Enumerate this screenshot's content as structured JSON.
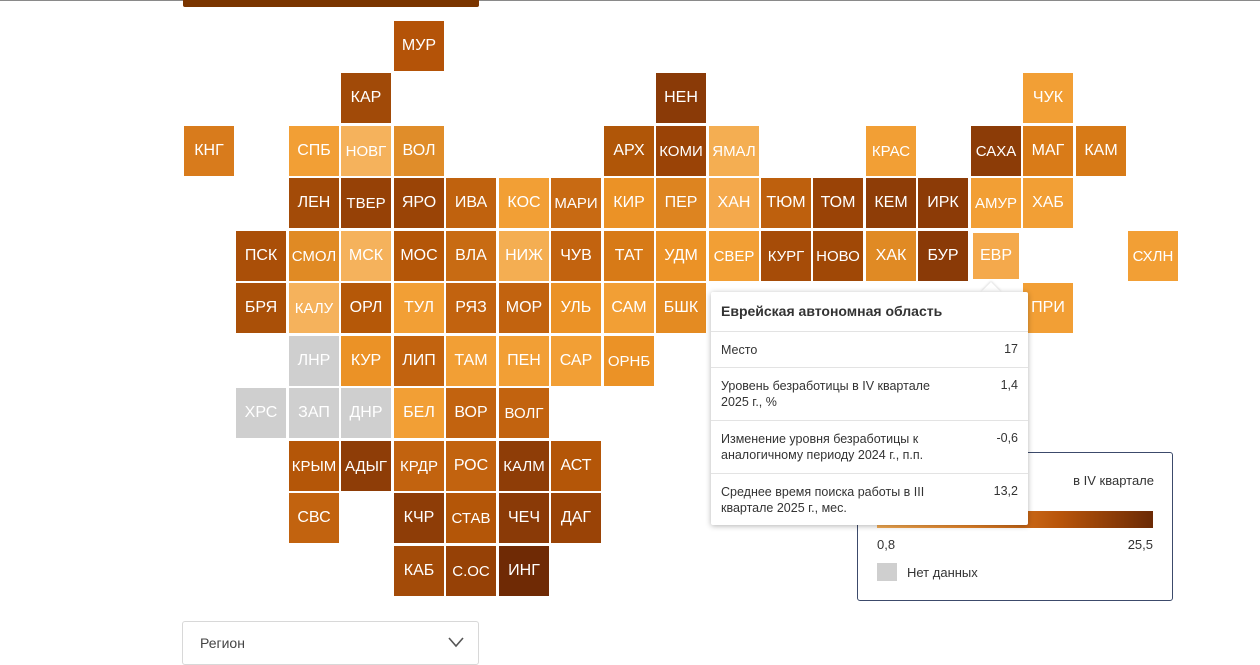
{
  "colors": {
    "na": "#cfcfcf",
    "selected": "#f4a94c"
  },
  "map": {
    "tiles": [
      {
        "code": "МУР",
        "row": 0,
        "col": 4,
        "color": "#b45308"
      },
      {
        "code": "КАР",
        "row": 1,
        "col": 3,
        "color": "#a14a08"
      },
      {
        "code": "НЕН",
        "row": 1,
        "col": 9,
        "color": "#8a3a07"
      },
      {
        "code": "ЧУК",
        "row": 1,
        "col": 16,
        "color": "#f29f35"
      },
      {
        "code": "КНГ",
        "row": 2,
        "col": 0,
        "color": "#d87b1c"
      },
      {
        "code": "СПБ",
        "row": 2,
        "col": 2,
        "color": "#f29f35"
      },
      {
        "code": "НОВГ",
        "row": 2,
        "col": 3,
        "color": "#f5b25c"
      },
      {
        "code": "ВОЛ",
        "row": 2,
        "col": 4,
        "color": "#e08d2a"
      },
      {
        "code": "АРХ",
        "row": 2,
        "col": 8,
        "color": "#b05608"
      },
      {
        "code": "КОМИ",
        "row": 2,
        "col": 9,
        "color": "#9a4306"
      },
      {
        "code": "ЯМАЛ",
        "row": 2,
        "col": 10,
        "color": "#f4ae52"
      },
      {
        "code": "КРАС",
        "row": 2,
        "col": 13,
        "color": "#f29f35"
      },
      {
        "code": "САХА",
        "row": 2,
        "col": 15,
        "color": "#8c3c07"
      },
      {
        "code": "МАГ",
        "row": 2,
        "col": 16,
        "color": "#d97b18"
      },
      {
        "code": "КАМ",
        "row": 2,
        "col": 17,
        "color": "#d77a17"
      },
      {
        "code": "ЛЕН",
        "row": 3,
        "col": 2,
        "color": "#a34b08"
      },
      {
        "code": "ТВЕР",
        "row": 3,
        "col": 3,
        "color": "#964106"
      },
      {
        "code": "ЯРО",
        "row": 3,
        "col": 4,
        "color": "#9a4406"
      },
      {
        "code": "ИВА",
        "row": 3,
        "col": 5,
        "color": "#c0620e"
      },
      {
        "code": "КОС",
        "row": 3,
        "col": 6,
        "color": "#f29f35"
      },
      {
        "code": "МАРИ",
        "row": 3,
        "col": 7,
        "color": "#c86a13"
      },
      {
        "code": "КИР",
        "row": 3,
        "col": 8,
        "color": "#eb9226"
      },
      {
        "code": "ПЕР",
        "row": 3,
        "col": 9,
        "color": "#dd8420"
      },
      {
        "code": "ХАН",
        "row": 3,
        "col": 10,
        "color": "#f4a94c"
      },
      {
        "code": "ТЮМ",
        "row": 3,
        "col": 11,
        "color": "#be600d"
      },
      {
        "code": "ТОМ",
        "row": 3,
        "col": 12,
        "color": "#9a4306"
      },
      {
        "code": "КЕМ",
        "row": 3,
        "col": 13,
        "color": "#8e3d07"
      },
      {
        "code": "ИРК",
        "row": 3,
        "col": 14,
        "color": "#8c3b07"
      },
      {
        "code": "АМУР",
        "row": 3,
        "col": 15,
        "color": "#f29f35"
      },
      {
        "code": "ХАБ",
        "row": 3,
        "col": 16,
        "color": "#f29f35"
      },
      {
        "code": "ПСК",
        "row": 4,
        "col": 1,
        "color": "#aa4f08"
      },
      {
        "code": "СМОЛ",
        "row": 4,
        "col": 2,
        "color": "#e08a24"
      },
      {
        "code": "МСК",
        "row": 4,
        "col": 3,
        "color": "#f5b25c"
      },
      {
        "code": "МОС",
        "row": 4,
        "col": 4,
        "color": "#b45608"
      },
      {
        "code": "ВЛА",
        "row": 4,
        "col": 5,
        "color": "#c86b13"
      },
      {
        "code": "НИЖ",
        "row": 4,
        "col": 6,
        "color": "#f4ae52"
      },
      {
        "code": "ЧУВ",
        "row": 4,
        "col": 7,
        "color": "#c2630f"
      },
      {
        "code": "ТАТ",
        "row": 4,
        "col": 8,
        "color": "#d77a17"
      },
      {
        "code": "УДМ",
        "row": 4,
        "col": 9,
        "color": "#eb9226"
      },
      {
        "code": "СВЕР",
        "row": 4,
        "col": 10,
        "color": "#f29f35"
      },
      {
        "code": "КУРГ",
        "row": 4,
        "col": 11,
        "color": "#a64c08"
      },
      {
        "code": "НОВО",
        "row": 4,
        "col": 12,
        "color": "#a04806"
      },
      {
        "code": "ХАК",
        "row": 4,
        "col": 13,
        "color": "#e08a24"
      },
      {
        "code": "БУР",
        "row": 4,
        "col": 14,
        "color": "#8a3a07"
      },
      {
        "code": "ЕВР",
        "row": 4,
        "col": 15,
        "color": "#f4a94c",
        "selected": true
      },
      {
        "code": "СХЛН",
        "row": 4,
        "col": 18,
        "color": "#f29f35"
      },
      {
        "code": "БРЯ",
        "row": 5,
        "col": 1,
        "color": "#aa5008"
      },
      {
        "code": "КАЛУ",
        "row": 5,
        "col": 2,
        "color": "#f5b25c"
      },
      {
        "code": "ОРЛ",
        "row": 5,
        "col": 3,
        "color": "#b55808"
      },
      {
        "code": "ТУЛ",
        "row": 5,
        "col": 4,
        "color": "#f29f35"
      },
      {
        "code": "РЯЗ",
        "row": 5,
        "col": 5,
        "color": "#c2630f"
      },
      {
        "code": "МОР",
        "row": 5,
        "col": 6,
        "color": "#c2630f"
      },
      {
        "code": "УЛЬ",
        "row": 5,
        "col": 7,
        "color": "#eb9226"
      },
      {
        "code": "САМ",
        "row": 5,
        "col": 8,
        "color": "#f29f35"
      },
      {
        "code": "БШК",
        "row": 5,
        "col": 9,
        "color": "#e48b22"
      },
      {
        "code": "ПРИ",
        "row": 5,
        "col": 16,
        "color": "#f29f35"
      },
      {
        "code": "ЛНР",
        "row": 6,
        "col": 2,
        "color": "#cfcfcf"
      },
      {
        "code": "КУР",
        "row": 6,
        "col": 3,
        "color": "#eb9226"
      },
      {
        "code": "ЛИП",
        "row": 6,
        "col": 4,
        "color": "#c2630f"
      },
      {
        "code": "ТАМ",
        "row": 6,
        "col": 5,
        "color": "#f29f35"
      },
      {
        "code": "ПЕН",
        "row": 6,
        "col": 6,
        "color": "#f29f35"
      },
      {
        "code": "САР",
        "row": 6,
        "col": 7,
        "color": "#f29f35"
      },
      {
        "code": "ОРНБ",
        "row": 6,
        "col": 8,
        "color": "#eb9226"
      },
      {
        "code": "ХРС",
        "row": 7,
        "col": 1,
        "color": "#cfcfcf"
      },
      {
        "code": "ЗАП",
        "row": 7,
        "col": 2,
        "color": "#cfcfcf"
      },
      {
        "code": "ДНР",
        "row": 7,
        "col": 3,
        "color": "#cfcfcf"
      },
      {
        "code": "БЕЛ",
        "row": 7,
        "col": 4,
        "color": "#f29f35"
      },
      {
        "code": "ВОР",
        "row": 7,
        "col": 5,
        "color": "#c2630f"
      },
      {
        "code": "ВОЛГ",
        "row": 7,
        "col": 6,
        "color": "#c2630f"
      },
      {
        "code": "КРЫМ",
        "row": 8,
        "col": 2,
        "color": "#b45608"
      },
      {
        "code": "АДЫГ",
        "row": 8,
        "col": 3,
        "color": "#8e3d07"
      },
      {
        "code": "КРДР",
        "row": 8,
        "col": 4,
        "color": "#c2630f"
      },
      {
        "code": "РОС",
        "row": 8,
        "col": 5,
        "color": "#c2630f"
      },
      {
        "code": "КАЛМ",
        "row": 8,
        "col": 6,
        "color": "#8e3d07"
      },
      {
        "code": "АСТ",
        "row": 8,
        "col": 7,
        "color": "#b45608"
      },
      {
        "code": "СВС",
        "row": 9,
        "col": 2,
        "color": "#c2630f"
      },
      {
        "code": "КЧР",
        "row": 9,
        "col": 4,
        "color": "#8e3d07"
      },
      {
        "code": "СТАВ",
        "row": 9,
        "col": 5,
        "color": "#b45608"
      },
      {
        "code": "ЧЕЧ",
        "row": 9,
        "col": 6,
        "color": "#8a3a07"
      },
      {
        "code": "ДАГ",
        "row": 9,
        "col": 7,
        "color": "#9a4306"
      },
      {
        "code": "КАБ",
        "row": 10,
        "col": 4,
        "color": "#a34b08"
      },
      {
        "code": "С.ОС",
        "row": 10,
        "col": 5,
        "color": "#964106"
      },
      {
        "code": "ИНГ",
        "row": 10,
        "col": 6,
        "color": "#6f2a05"
      }
    ]
  },
  "tooltip": {
    "title": "Еврейская автономная область",
    "rows": [
      {
        "label": "Место",
        "value": "17"
      },
      {
        "label": "Уровень безработицы в IV квартале 2025 г., %",
        "value": "1,4"
      },
      {
        "label": "Изменение уровня безработицы к аналогичному периоду 2024 г., п.п.",
        "value": "-0,6"
      },
      {
        "label": "Среднее время поиска работы в III квартале 2025 г., мес.",
        "value": "13,2"
      }
    ]
  },
  "legend": {
    "title_visible": "в IV квартале",
    "min": "0,8",
    "max": "25,5",
    "na_label": "Нет данных"
  },
  "region_select": {
    "label": "Регион"
  }
}
